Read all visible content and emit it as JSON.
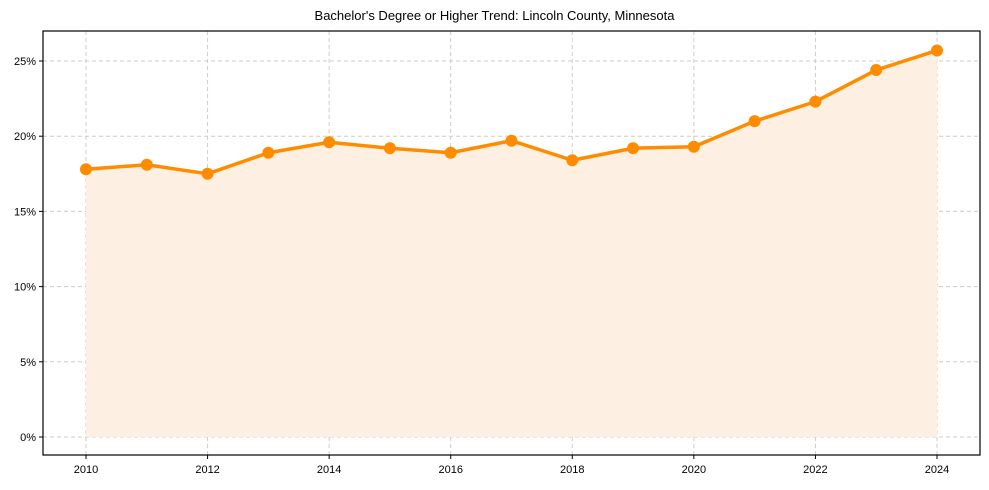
{
  "chart_data": {
    "type": "line",
    "title": "Bachelor's Degree or Higher Trend: Lincoln County, Minnesota",
    "xlabel": "",
    "ylabel": "",
    "x": [
      2010,
      2011,
      2012,
      2013,
      2014,
      2015,
      2016,
      2017,
      2018,
      2019,
      2020,
      2021,
      2022,
      2023,
      2024
    ],
    "series": [
      {
        "name": "Bachelor's Degree or Higher",
        "values": [
          17.8,
          18.1,
          17.5,
          18.9,
          19.6,
          19.2,
          18.9,
          19.7,
          18.4,
          19.2,
          19.3,
          21.0,
          22.3,
          24.4,
          25.7
        ],
        "color": "#ff8c00",
        "fill": "#fdf0e2",
        "marker": "circle"
      }
    ],
    "xticks": [
      "2010",
      "2012",
      "2014",
      "2016",
      "2018",
      "2020",
      "2022",
      "2024"
    ],
    "yticks": [
      "0%",
      "5%",
      "10%",
      "15%",
      "20%",
      "25%"
    ],
    "ytick_values": [
      0,
      5,
      10,
      15,
      20,
      25
    ],
    "ylim": [
      -1.2,
      27.2
    ],
    "xlim": [
      2009.3,
      2024.7
    ],
    "grid": true,
    "legend": "none"
  }
}
